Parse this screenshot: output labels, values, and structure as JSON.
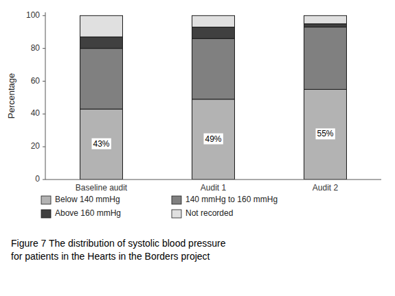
{
  "chart_data": {
    "type": "bar",
    "stacked": true,
    "caption": "Figure 7  The distribution of systolic blood pressure\nfor patients in the Hearts in the Borders project",
    "ylabel": "Percentage",
    "categories": [
      "Baseline audit",
      "Audit 1",
      "Audit 2"
    ],
    "series": [
      {
        "name": "Below 140 mmHg",
        "color": "#b3b3b3",
        "values": [
          43,
          49,
          55
        ],
        "data_labels": true,
        "value_labels": [
          "43%",
          "49%",
          "55%"
        ]
      },
      {
        "name": "140 mmHg to 160 mmHg",
        "color": "#808080",
        "values": [
          37,
          37,
          38
        ]
      },
      {
        "name": "Above 160 mmHg",
        "color": "#404040",
        "values": [
          7,
          7,
          2
        ]
      },
      {
        "name": "Not recorded",
        "color": "#e0e0e0",
        "values": [
          13,
          7,
          5
        ]
      }
    ],
    "ylim": [
      0,
      102
    ],
    "yticks": [
      0,
      20,
      40,
      60,
      80,
      100
    ],
    "grid": false,
    "legend": "bottom"
  }
}
